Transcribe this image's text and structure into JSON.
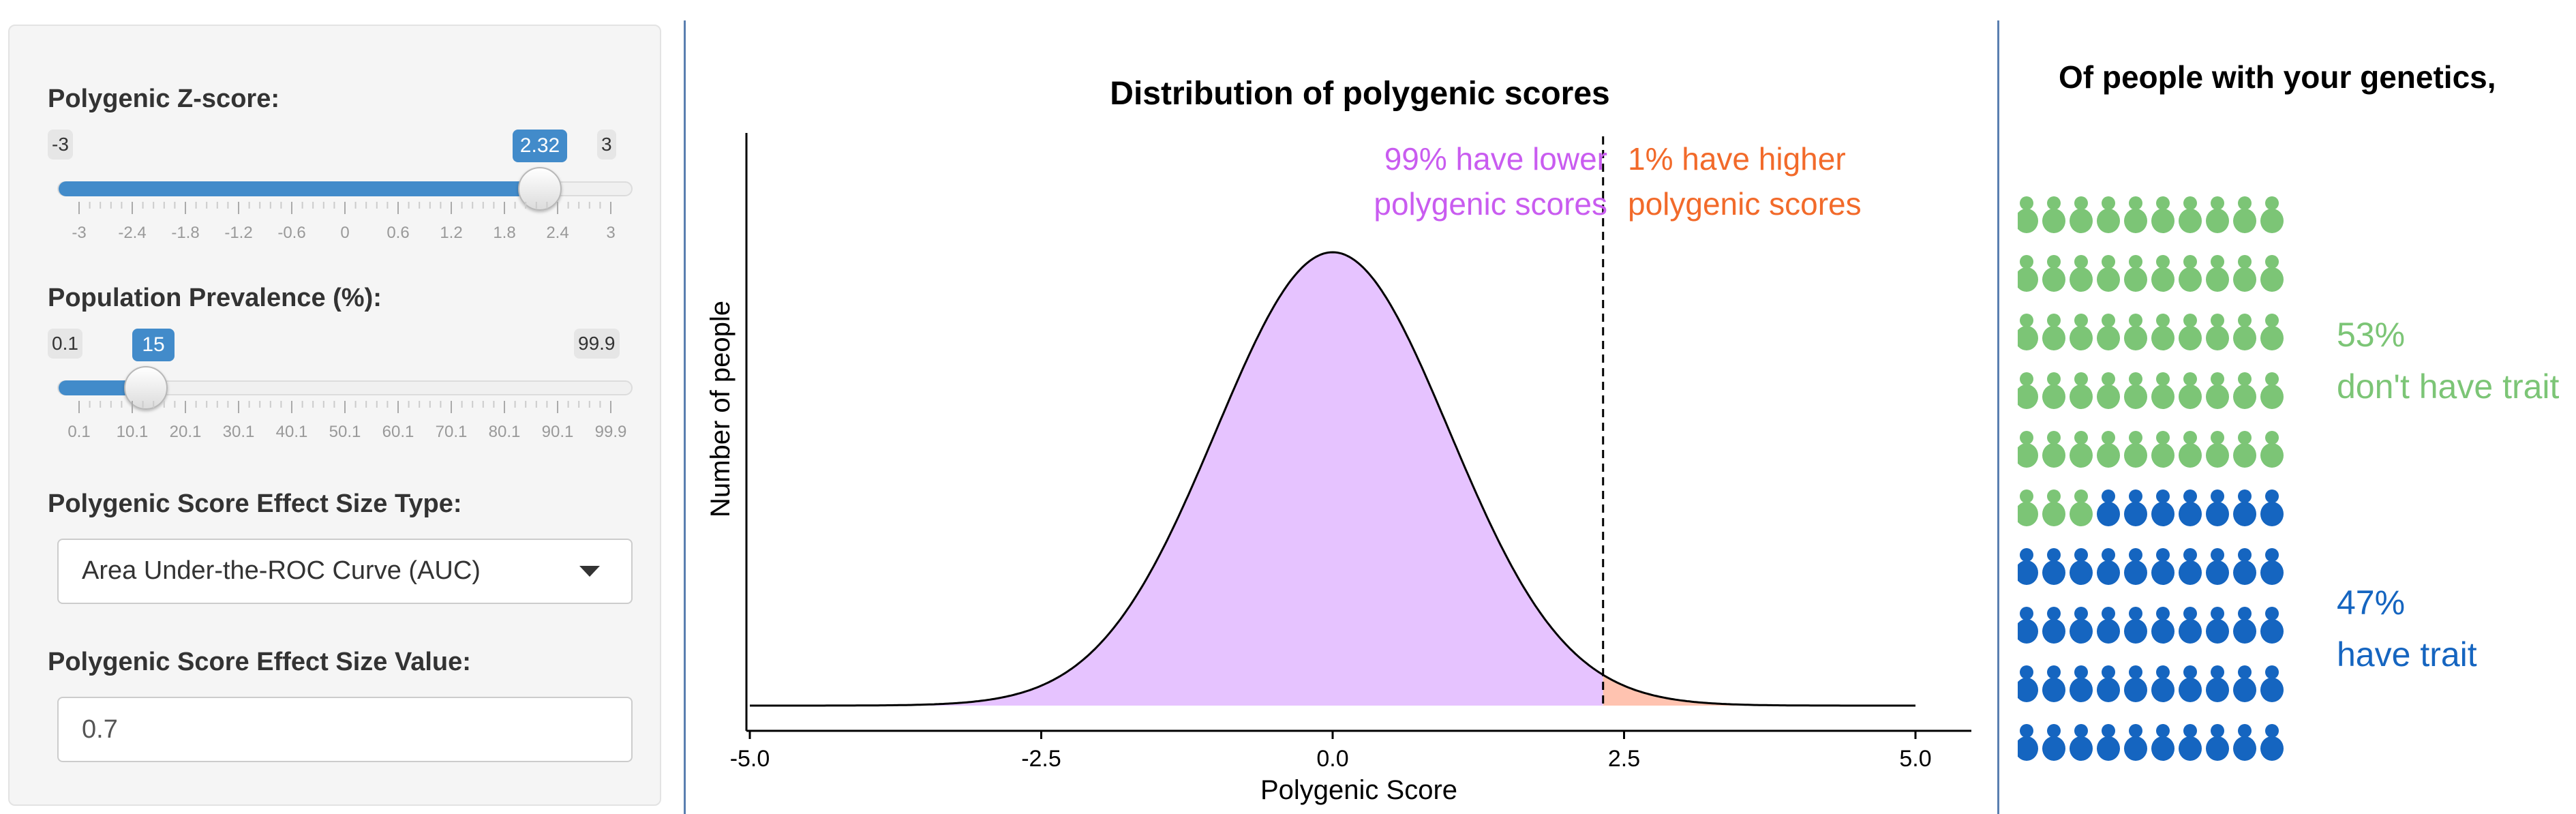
{
  "sidebar": {
    "zscore": {
      "label": "Polygenic Z-score:",
      "min": "-3",
      "max": "3",
      "value": "2.32",
      "ticks": [
        "-3",
        "-2.4",
        "-1.8",
        "-1.2",
        "-0.6",
        "0",
        "0.6",
        "1.2",
        "1.8",
        "2.4",
        "3"
      ]
    },
    "prevalence": {
      "label": "Population Prevalence (%):",
      "min": "0.1",
      "max": "99.9",
      "value": "15",
      "ticks": [
        "0.1",
        "10.1",
        "20.1",
        "30.1",
        "40.1",
        "50.1",
        "60.1",
        "70.1",
        "80.1",
        "90.1",
        "99.9"
      ]
    },
    "effect_type": {
      "label": "Polygenic Score Effect Size Type:",
      "selected": "Area Under-the-ROC Curve (AUC)"
    },
    "effect_value": {
      "label": "Polygenic Score Effect Size Value:",
      "value": "0.7"
    }
  },
  "chart": {
    "title": "Distribution of polygenic scores",
    "lower_line1": "99% have lower",
    "lower_line2": "polygenic scores",
    "higher_line1": "1% have higher",
    "higher_line2": "polygenic scores"
  },
  "chart_data": {
    "type": "area",
    "title": "Distribution of polygenic scores",
    "xlabel": "Polygenic Score",
    "ylabel": "Number of people",
    "x_ticks": [
      "-5.0",
      "-2.5",
      "0.0",
      "2.5",
      "5.0"
    ],
    "xlim": [
      -5,
      5
    ],
    "distribution": "standard normal density",
    "threshold": 2.32,
    "series": [
      {
        "name": "99% have lower",
        "range": [
          -5,
          2.32
        ],
        "color": "#e6c3ff"
      },
      {
        "name": "1% have higher",
        "range": [
          2.32,
          5
        ],
        "color": "#ffc3b0"
      }
    ],
    "grid": false
  },
  "icons": {
    "title": "Of people with your genetics,",
    "grid_rows": 10,
    "grid_cols": 10,
    "no_trait": {
      "pct": "53%",
      "label": "don't have trait",
      "count": 53,
      "color": "#7cc576"
    },
    "trait": {
      "pct": "47%",
      "label": "have trait",
      "count": 47,
      "color": "#1565c0"
    }
  }
}
